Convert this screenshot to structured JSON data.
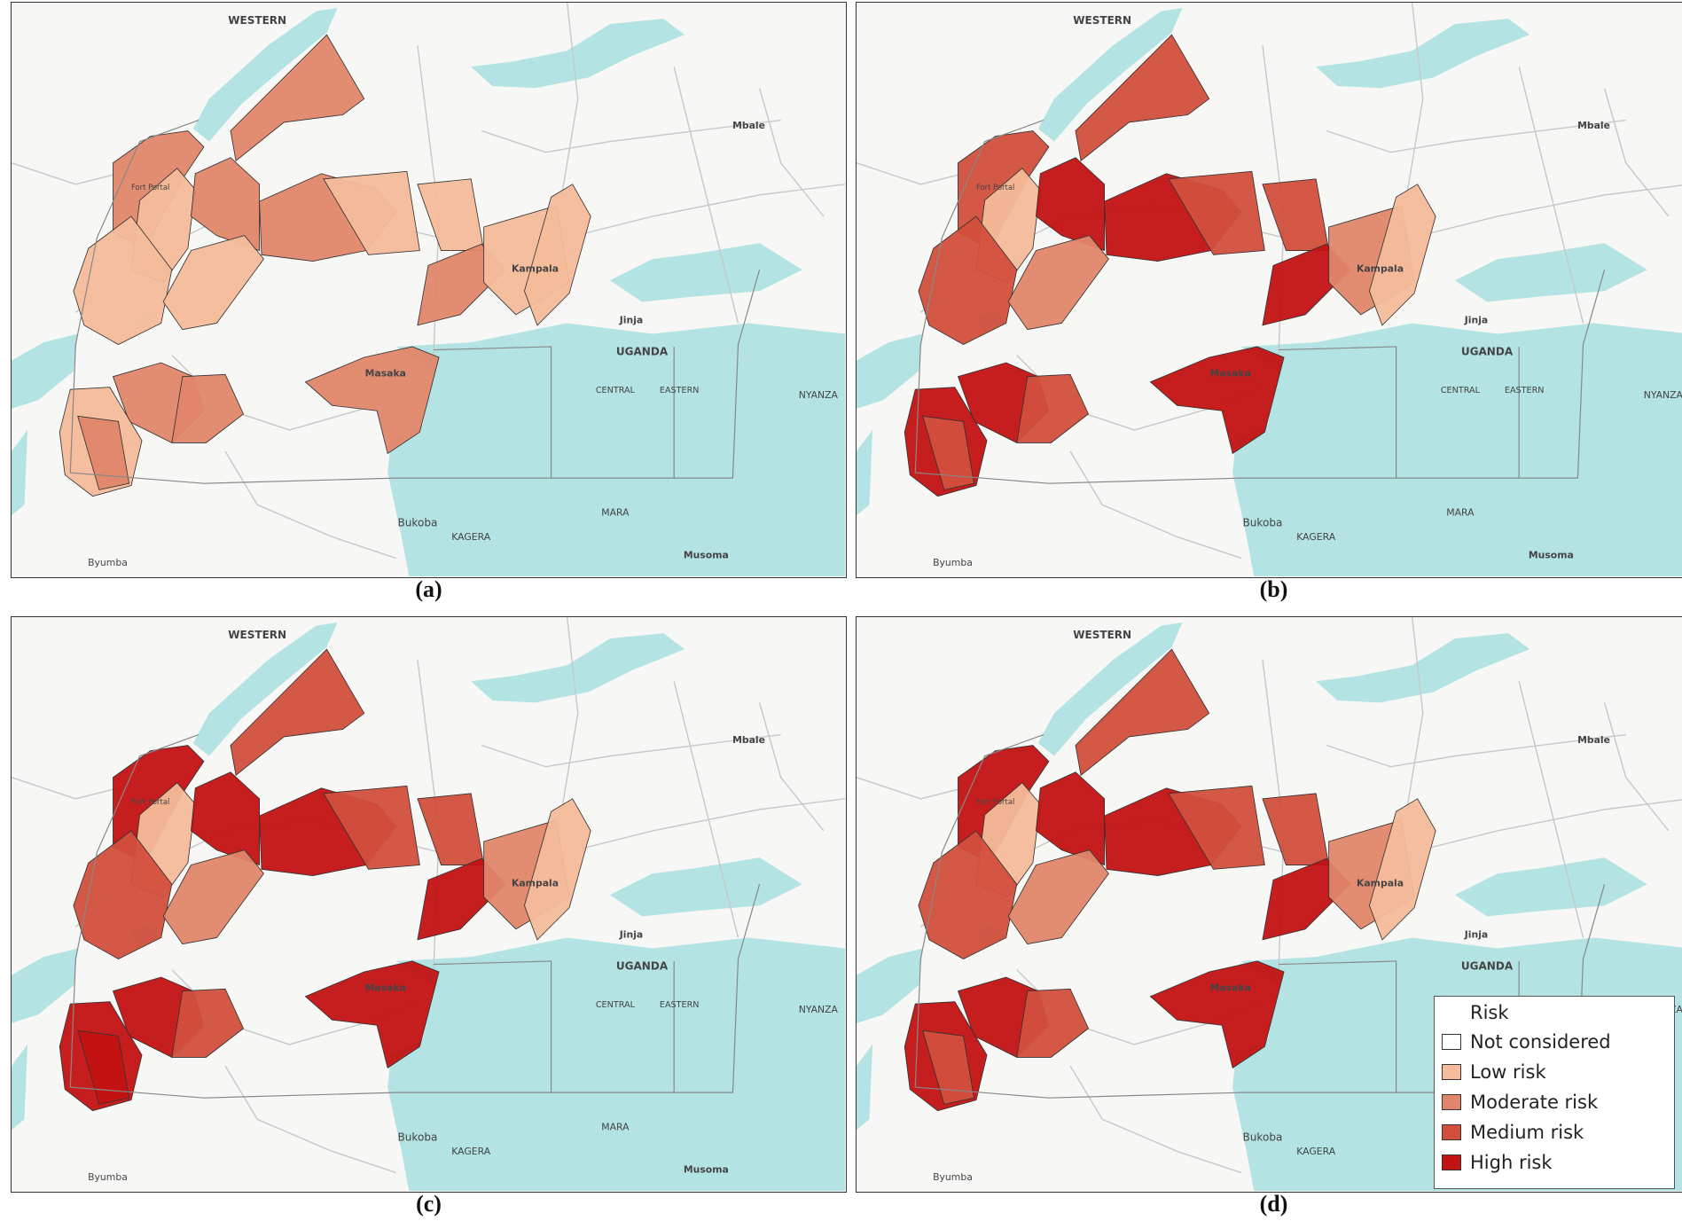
{
  "panels": [
    {
      "label": "(a)"
    },
    {
      "label": "(b)"
    },
    {
      "label": "(c)"
    },
    {
      "label": "(d)"
    }
  ],
  "legend": {
    "title": "Risk",
    "items": [
      {
        "label": "Not considered",
        "color": "#ffffff"
      },
      {
        "label": "Low risk",
        "color": "#f4bc9a"
      },
      {
        "label": "Moderate risk",
        "color": "#e0866a"
      },
      {
        "label": "Medium risk",
        "color": "#d24f3c"
      },
      {
        "label": "High risk",
        "color": "#c31212"
      }
    ]
  },
  "map_labels": [
    "WESTERN",
    "Kampala",
    "Masaka",
    "UGANDA",
    "CENTRAL",
    "EASTERN",
    "Jinja",
    "Mbale",
    "Bukoba",
    "KAGERA",
    "MARA",
    "Musoma",
    "NYANZA",
    "Byumba",
    "Fort Portal"
  ]
}
